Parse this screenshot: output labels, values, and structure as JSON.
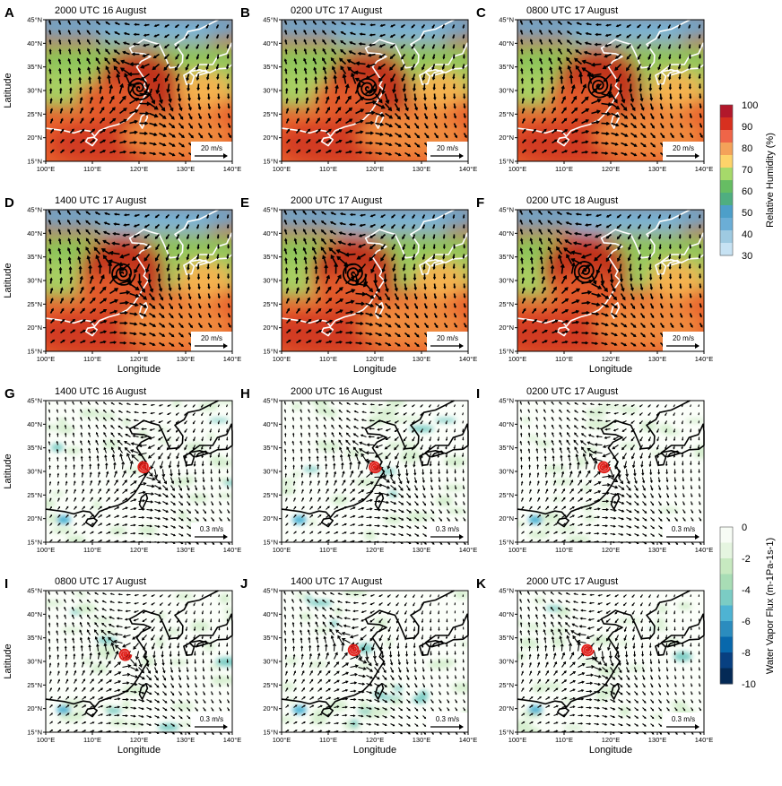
{
  "figure": {
    "x_axis_title": "Longitude",
    "y_axis_title": "Latitude",
    "lon_ticks": [
      "100°E",
      "110°E",
      "120°E",
      "130°E",
      "140°E"
    ],
    "lat_ticks": [
      "15°N",
      "20°N",
      "25°N",
      "30°N",
      "35°N",
      "40°N",
      "45°N"
    ],
    "panels_top": [
      {
        "letter": "A",
        "title": "2000 UTC 16 August",
        "ref_vector": "20 m/s"
      },
      {
        "letter": "B",
        "title": "0200 UTC 17 August",
        "ref_vector": "20 m/s"
      },
      {
        "letter": "C",
        "title": "0800 UTC 17 August",
        "ref_vector": "20 m/s"
      },
      {
        "letter": "D",
        "title": "1400 UTC 17 August",
        "ref_vector": "20 m/s"
      },
      {
        "letter": "E",
        "title": "2000 UTC 17 August",
        "ref_vector": "20 m/s"
      },
      {
        "letter": "F",
        "title": "0200 UTC 18 August",
        "ref_vector": "20 m/s"
      }
    ],
    "panels_bottom": [
      {
        "letter": "G",
        "title": "1400 UTC 16 August",
        "ref_vector": "0.3 m/s"
      },
      {
        "letter": "H",
        "title": "2000 UTC 16 August",
        "ref_vector": "0.3 m/s"
      },
      {
        "letter": "I",
        "title": "0200 UTC 17 August",
        "ref_vector": "0.3 m/s"
      },
      {
        "letter": "I",
        "title": "0800 UTC 17 August",
        "ref_vector": "0.3 m/s"
      },
      {
        "letter": "J",
        "title": "1400 UTC 17 August",
        "ref_vector": "0.3 m/s"
      },
      {
        "letter": "K",
        "title": "2000 UTC 17 August",
        "ref_vector": "0.3 m/s"
      }
    ],
    "colorbar_top": {
      "label": "Relative Humidity (%)",
      "ticks": [
        "100",
        "90",
        "80",
        "70",
        "60",
        "50",
        "40",
        "30"
      ],
      "colors": [
        "#b2182b",
        "#d7301f",
        "#ef6548",
        "#f4a259",
        "#fdd36a",
        "#a6d96a",
        "#66bd63",
        "#4fae80",
        "#4d9fc9",
        "#6baed6",
        "#9ecae1",
        "#c6e2f3"
      ]
    },
    "colorbar_bottom": {
      "label": "Water Vapor Flux (m-1Pa-1s-1)",
      "ticks": [
        "0",
        "-2",
        "-4",
        "-6",
        "-8",
        "-10"
      ],
      "colors": [
        "#f7fcf5",
        "#e5f5e0",
        "#c7e9c0",
        "#a8ddb5",
        "#7bccc4",
        "#4eb3d3",
        "#2b8cbe",
        "#0868ac",
        "#084081",
        "#042a56"
      ]
    }
  },
  "chart_data": {
    "type": "map",
    "description_fields": "wind vectors over relative humidity (A-F) and water vapor flux (G-K)",
    "x_range": [
      100,
      140
    ],
    "y_range": [
      15,
      45
    ],
    "x_label": "Longitude",
    "y_label": "Latitude",
    "top_variable": "Relative Humidity (%)",
    "top_range": [
      30,
      100
    ],
    "bottom_variable": "Water Vapor Flux (m-1Pa-1s-1)",
    "bottom_range": [
      -10,
      0
    ],
    "typhoon_center_top": [
      {
        "panel": "A",
        "lon": 120,
        "lat": 30.5
      },
      {
        "panel": "B",
        "lon": 118.5,
        "lat": 30.5
      },
      {
        "panel": "C",
        "lon": 117.5,
        "lat": 31
      },
      {
        "panel": "D",
        "lon": 116.5,
        "lat": 31.5
      },
      {
        "panel": "E",
        "lon": 115.5,
        "lat": 31.5
      },
      {
        "panel": "F",
        "lon": 114.5,
        "lat": 32
      }
    ],
    "typhoon_center_bottom": [
      {
        "panel": "G",
        "lon": 121,
        "lat": 31
      },
      {
        "panel": "H",
        "lon": 120,
        "lat": 31
      },
      {
        "panel": "I",
        "lon": 118.5,
        "lat": 31
      },
      {
        "panel": "I",
        "lon": 117,
        "lat": 31.5
      },
      {
        "panel": "J",
        "lon": 115.5,
        "lat": 32.5
      },
      {
        "panel": "K",
        "lon": 115,
        "lat": 32.5
      }
    ]
  }
}
